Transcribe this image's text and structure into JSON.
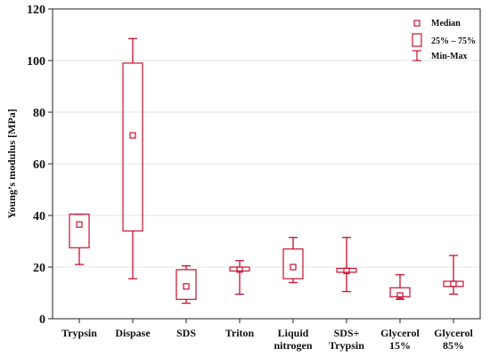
{
  "chart_data": {
    "type": "boxplot",
    "categories": [
      "Trypsin",
      "Dispase",
      "SDS",
      "Triton",
      "Liquid\nnitrogen",
      "SDS+\nTrypsin",
      "Glycerol\n15%",
      "Glycerol\n85%"
    ],
    "series": [
      {
        "category": "Trypsin",
        "median": 36.5,
        "q1": 27.5,
        "q3": 40.5,
        "min": 21.0,
        "max": 40.5
      },
      {
        "category": "Dispase",
        "median": 71.0,
        "q1": 34.0,
        "q3": 99.0,
        "min": 15.5,
        "max": 108.5
      },
      {
        "category": "SDS",
        "median": 12.5,
        "q1": 7.5,
        "q3": 19.0,
        "min": 6.0,
        "max": 20.5
      },
      {
        "category": "Triton",
        "median": 19.0,
        "q1": 18.5,
        "q3": 20.0,
        "min": 9.5,
        "max": 22.5
      },
      {
        "category": "Liquid\nnitrogen",
        "median": 20.0,
        "q1": 15.5,
        "q3": 27.0,
        "min": 14.0,
        "max": 31.5
      },
      {
        "category": "SDS+\nTrypsin",
        "median": 18.5,
        "q1": 18.0,
        "q3": 19.5,
        "min": 10.5,
        "max": 31.5
      },
      {
        "category": "Glycerol\n15%",
        "median": 9.0,
        "q1": 8.5,
        "q3": 12.0,
        "min": 7.5,
        "max": 17.0
      },
      {
        "category": "Glycerol\n85%",
        "median": 13.5,
        "q1": 12.5,
        "q3": 14.5,
        "min": 9.5,
        "max": 24.5
      }
    ],
    "title": "",
    "xlabel": "",
    "ylabel": "Young’s modulus [MPa]",
    "ylim": [
      0,
      120
    ],
    "yticks": [
      0,
      20,
      40,
      60,
      80,
      100,
      120
    ],
    "grid": true,
    "legend": {
      "placement": "top-right",
      "entries": [
        "Median",
        "25% – 75%",
        "Min-Max"
      ]
    },
    "color": "#C8102E"
  }
}
